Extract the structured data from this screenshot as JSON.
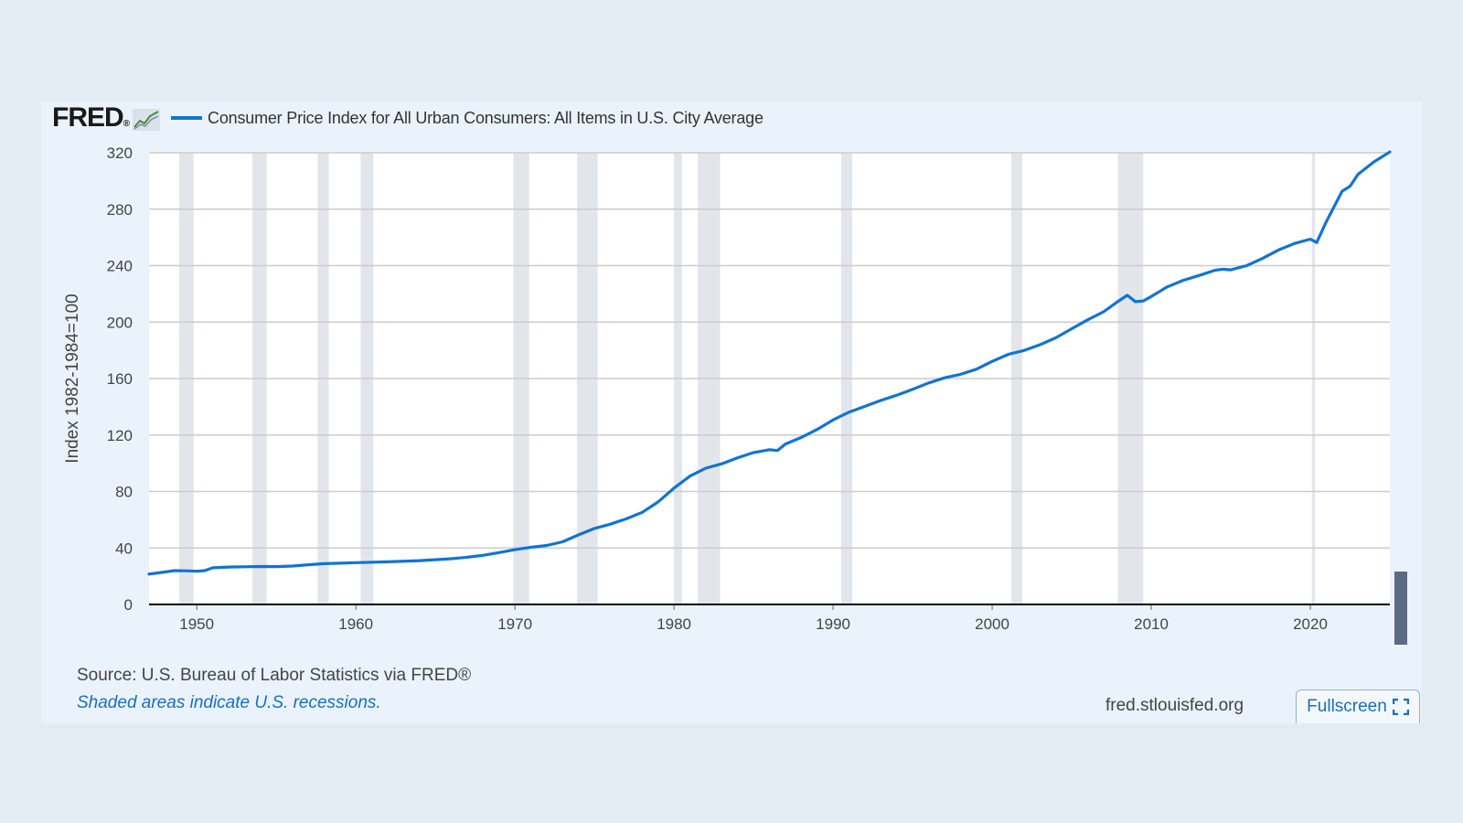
{
  "logo": {
    "text": "FRED",
    "mark": "®"
  },
  "icons": {
    "logo_graph": "line-graph-icon",
    "fullscreen": "expand-icon"
  },
  "colors": {
    "series": "#1273d4",
    "recession": "#e2e6ea",
    "grid": "#cccccc",
    "axis": "#000000",
    "scroll_handle": "#5b6b86",
    "link": "#1a6ec2"
  },
  "footer": {
    "source": "Source: U.S. Bureau of Labor Statistics via FRED®",
    "recession_note": "Shaded areas indicate U.S. recessions.",
    "site": "fred.stlouisfed.org",
    "fullscreen_label": "Fullscreen"
  },
  "chart_data": {
    "type": "line",
    "title": "",
    "xlabel": "",
    "ylabel": "Index 1982-1984=100",
    "xlim": [
      1947.0,
      2025.0
    ],
    "ylim": [
      0,
      320
    ],
    "x_ticks": [
      1950,
      1960,
      1970,
      1980,
      1990,
      2000,
      2010,
      2020
    ],
    "y_ticks": [
      0,
      40,
      80,
      120,
      160,
      200,
      240,
      280,
      320
    ],
    "grid": "horizontal",
    "legend_position": "top-left",
    "recession_shading": [
      [
        1948.9,
        1949.8
      ],
      [
        1953.5,
        1954.4
      ],
      [
        1957.6,
        1958.3
      ],
      [
        1960.3,
        1961.1
      ],
      [
        1969.9,
        1970.9
      ],
      [
        1973.9,
        1975.2
      ],
      [
        1980.0,
        1980.5
      ],
      [
        1981.5,
        1982.9
      ],
      [
        1990.5,
        1991.2
      ],
      [
        2001.2,
        2001.9
      ],
      [
        2007.9,
        2009.5
      ],
      [
        2020.1,
        2020.3
      ]
    ],
    "series": [
      {
        "name": "Consumer Price Index for All Urban Consumers: All Items in U.S. City Average",
        "x": [
          1947.0,
          1948.0,
          1948.6,
          1949.5,
          1950.0,
          1950.5,
          1951.0,
          1952.0,
          1953.0,
          1954.0,
          1955.0,
          1956.0,
          1957.0,
          1958.0,
          1959.0,
          1960.0,
          1962.0,
          1964.0,
          1966.0,
          1967.0,
          1968.0,
          1969.0,
          1970.0,
          1971.0,
          1972.0,
          1973.0,
          1974.0,
          1975.0,
          1976.0,
          1977.0,
          1978.0,
          1979.0,
          1980.0,
          1981.0,
          1982.0,
          1983.0,
          1984.0,
          1985.0,
          1986.0,
          1986.5,
          1987.0,
          1988.0,
          1989.0,
          1990.0,
          1991.0,
          1992.0,
          1993.0,
          1994.0,
          1995.0,
          1996.0,
          1997.0,
          1998.0,
          1999.0,
          2000.0,
          2001.0,
          2002.0,
          2003.0,
          2004.0,
          2005.0,
          2006.0,
          2007.0,
          2008.0,
          2008.5,
          2009.0,
          2009.5,
          2010.0,
          2011.0,
          2012.0,
          2013.0,
          2014.0,
          2014.5,
          2015.0,
          2016.0,
          2017.0,
          2018.0,
          2019.0,
          2020.0,
          2020.4,
          2021.0,
          2022.0,
          2022.5,
          2023.0,
          2024.0,
          2025.0
        ],
        "y": [
          21.5,
          23.0,
          24.0,
          23.8,
          23.5,
          24.0,
          26.0,
          26.5,
          26.7,
          26.9,
          26.8,
          27.2,
          28.1,
          28.9,
          29.2,
          29.6,
          30.2,
          31.0,
          32.4,
          33.4,
          34.8,
          36.7,
          38.8,
          40.5,
          41.8,
          44.4,
          49.3,
          53.8,
          56.9,
          60.6,
          65.2,
          72.6,
          82.4,
          90.9,
          96.5,
          99.6,
          103.9,
          107.6,
          109.6,
          109.0,
          113.6,
          118.3,
          124.0,
          130.7,
          136.2,
          140.3,
          144.5,
          148.2,
          152.4,
          156.9,
          160.5,
          163.0,
          166.6,
          172.2,
          177.1,
          179.9,
          184.0,
          188.9,
          195.3,
          201.6,
          207.3,
          215.3,
          219.0,
          214.5,
          215.0,
          218.1,
          224.9,
          229.6,
          233.0,
          236.7,
          237.5,
          237.0,
          240.0,
          245.1,
          251.1,
          255.7,
          258.8,
          256.4,
          271.0,
          292.7,
          296.3,
          304.7,
          313.5,
          320.5
        ]
      }
    ]
  }
}
